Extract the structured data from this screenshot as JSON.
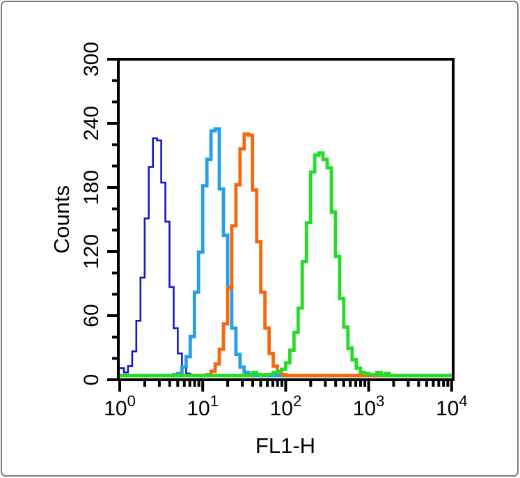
{
  "page": {
    "background_color": "#ffffff",
    "outer_border_color": "#7e7e7e",
    "frame_color": "#000000"
  },
  "chart_data": {
    "type": "histogram",
    "subtype": "flow-cytometry-overlay-step-histogram",
    "title": "",
    "xlabel": "FL1-H",
    "ylabel": "Counts",
    "x_scale": "log10",
    "x_range": [
      1,
      10000
    ],
    "y_range": [
      0,
      300
    ],
    "grid": false,
    "legend": "none",
    "y_major_tick_step": 60,
    "y_minor_tick_step": 20,
    "y_tick_labels": [
      "0",
      "60",
      "120",
      "180",
      "240",
      "300"
    ],
    "x_tick_labels": [
      {
        "base": "10",
        "exp": "0"
      },
      {
        "base": "10",
        "exp": "1"
      },
      {
        "base": "10",
        "exp": "2"
      },
      {
        "base": "10",
        "exp": "3"
      },
      {
        "base": "10",
        "exp": "4"
      }
    ],
    "bins_per_decade": 20,
    "jitter": 0.07,
    "series": [
      {
        "name": "dark-blue-curve",
        "color": "#1716CB",
        "line_width": 2.6,
        "peak_x": 2.8,
        "peak_log10": 0.447,
        "peak_counts": 238,
        "sigma_log10": 0.125,
        "edge_bin_counts": 7
      },
      {
        "name": "light-blue-curve",
        "color": "#279FE8",
        "line_width": 4.8,
        "peak_x": 13.5,
        "peak_log10": 1.13,
        "peak_counts": 236,
        "sigma_log10": 0.135
      },
      {
        "name": "orange-curve",
        "color": "#F5690E",
        "line_width": 4.8,
        "peak_x": 33,
        "peak_log10": 1.52,
        "peak_counts": 232,
        "sigma_log10": 0.14
      },
      {
        "name": "green-curve",
        "color": "#25DC28",
        "line_width": 4.8,
        "peak_x": 270,
        "peak_log10": 2.43,
        "peak_counts": 219,
        "sigma_log10": 0.165,
        "tail_noise": {
          "from_log10": 1.6,
          "to_log10": 3.3,
          "amplitude": 3
        }
      }
    ]
  }
}
